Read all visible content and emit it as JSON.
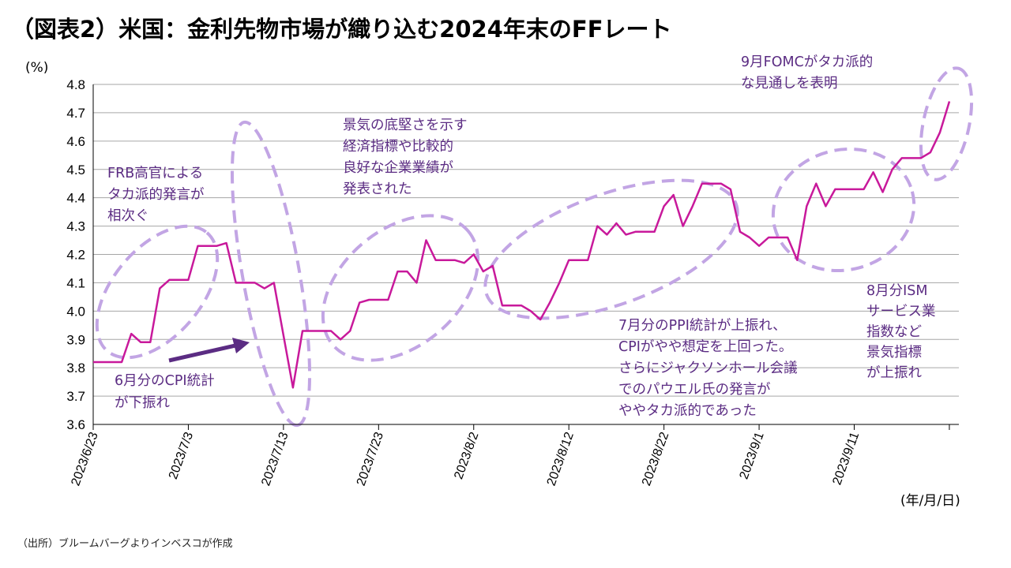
{
  "title": "（図表2）米国：金利先物市場が織り込む2024年末のFFレート",
  "source": "（出所）ブルームバーグよりインベスコが作成",
  "chart_data": {
    "type": "line",
    "y_unit_label": "(%)",
    "x_unit_label": "(年/月/日)",
    "ylim": [
      3.6,
      4.8
    ],
    "yticks": [
      "3.6",
      "3.7",
      "3.8",
      "3.9",
      "4.0",
      "4.1",
      "4.2",
      "4.3",
      "4.4",
      "4.5",
      "4.6",
      "4.7",
      "4.8"
    ],
    "x_start_date": "2023-06-23",
    "x_end_date": "2023-09-22",
    "xtick_labels": [
      "2023/6/23",
      "2023/7/3",
      "2023/7/13",
      "2023/7/23",
      "2023/8/2",
      "2023/8/12",
      "2023/8/22",
      "2023/9/1",
      "2023/9/11"
    ],
    "grid": true,
    "line_color": "#c8199b",
    "series": [
      {
        "name": "",
        "points": [
          [
            "2023-06-23",
            3.82
          ],
          [
            "2023-06-26",
            3.82
          ],
          [
            "2023-06-27",
            3.92
          ],
          [
            "2023-06-28",
            3.89
          ],
          [
            "2023-06-29",
            3.89
          ],
          [
            "2023-06-30",
            4.08
          ],
          [
            "2023-07-01",
            4.11
          ],
          [
            "2023-07-03",
            4.11
          ],
          [
            "2023-07-04",
            4.23
          ],
          [
            "2023-07-06",
            4.23
          ],
          [
            "2023-07-07",
            4.24
          ],
          [
            "2023-07-08",
            4.1
          ],
          [
            "2023-07-10",
            4.1
          ],
          [
            "2023-07-11",
            4.08
          ],
          [
            "2023-07-12",
            4.1
          ],
          [
            "2023-07-14",
            3.73
          ],
          [
            "2023-07-15",
            3.93
          ],
          [
            "2023-07-17",
            3.93
          ],
          [
            "2023-07-18",
            3.93
          ],
          [
            "2023-07-19",
            3.9
          ],
          [
            "2023-07-20",
            3.93
          ],
          [
            "2023-07-21",
            4.03
          ],
          [
            "2023-07-22",
            4.04
          ],
          [
            "2023-07-24",
            4.04
          ],
          [
            "2023-07-25",
            4.14
          ],
          [
            "2023-07-26",
            4.14
          ],
          [
            "2023-07-27",
            4.1
          ],
          [
            "2023-07-28",
            4.25
          ],
          [
            "2023-07-29",
            4.18
          ],
          [
            "2023-07-31",
            4.18
          ],
          [
            "2023-08-01",
            4.17
          ],
          [
            "2023-08-02",
            4.2
          ],
          [
            "2023-08-03",
            4.14
          ],
          [
            "2023-08-04",
            4.16
          ],
          [
            "2023-08-05",
            4.02
          ],
          [
            "2023-08-07",
            4.02
          ],
          [
            "2023-08-08",
            4.0
          ],
          [
            "2023-08-09",
            3.97
          ],
          [
            "2023-08-10",
            4.03
          ],
          [
            "2023-08-11",
            4.1
          ],
          [
            "2023-08-12",
            4.18
          ],
          [
            "2023-08-14",
            4.18
          ],
          [
            "2023-08-15",
            4.3
          ],
          [
            "2023-08-16",
            4.27
          ],
          [
            "2023-08-17",
            4.31
          ],
          [
            "2023-08-18",
            4.27
          ],
          [
            "2023-08-19",
            4.28
          ],
          [
            "2023-08-21",
            4.28
          ],
          [
            "2023-08-22",
            4.37
          ],
          [
            "2023-08-23",
            4.41
          ],
          [
            "2023-08-24",
            4.3
          ],
          [
            "2023-08-25",
            4.37
          ],
          [
            "2023-08-26",
            4.45
          ],
          [
            "2023-08-28",
            4.45
          ],
          [
            "2023-08-29",
            4.43
          ],
          [
            "2023-08-30",
            4.28
          ],
          [
            "2023-08-31",
            4.26
          ],
          [
            "2023-09-01",
            4.23
          ],
          [
            "2023-09-02",
            4.26
          ],
          [
            "2023-09-04",
            4.26
          ],
          [
            "2023-09-05",
            4.18
          ],
          [
            "2023-09-06",
            4.37
          ],
          [
            "2023-09-07",
            4.45
          ],
          [
            "2023-09-08",
            4.37
          ],
          [
            "2023-09-09",
            4.43
          ],
          [
            "2023-09-11",
            4.43
          ],
          [
            "2023-09-12",
            4.43
          ],
          [
            "2023-09-13",
            4.49
          ],
          [
            "2023-09-14",
            4.42
          ],
          [
            "2023-09-15",
            4.5
          ],
          [
            "2023-09-16",
            4.54
          ],
          [
            "2023-09-18",
            4.54
          ],
          [
            "2023-09-19",
            4.56
          ],
          [
            "2023-09-20",
            4.63
          ],
          [
            "2023-09-21",
            4.74
          ]
        ]
      }
    ],
    "annotations": [
      {
        "lines": [
          "FRB高官による",
          "タカ派的発言が",
          "相次ぐ"
        ]
      },
      {
        "lines": [
          "景気の底堅さを示す",
          "経済指標や比較的",
          "良好な企業業績が",
          "発表された"
        ]
      },
      {
        "lines": [
          "9月FOMCがタカ派的",
          "な見通しを表明"
        ]
      },
      {
        "lines": [
          "6月分のCPI統計",
          "が下振れ"
        ]
      },
      {
        "lines": [
          "7月分のPPI統計が上振れ、",
          "CPIがやや想定を上回った。",
          "さらにジャクソンホール会議",
          "でのパウエル氏の発言が",
          "ややタカ派的であった"
        ]
      },
      {
        "lines": [
          "8月分ISM",
          "サービス業",
          "指数など",
          "景気指標",
          "が上振れ"
        ]
      }
    ]
  }
}
